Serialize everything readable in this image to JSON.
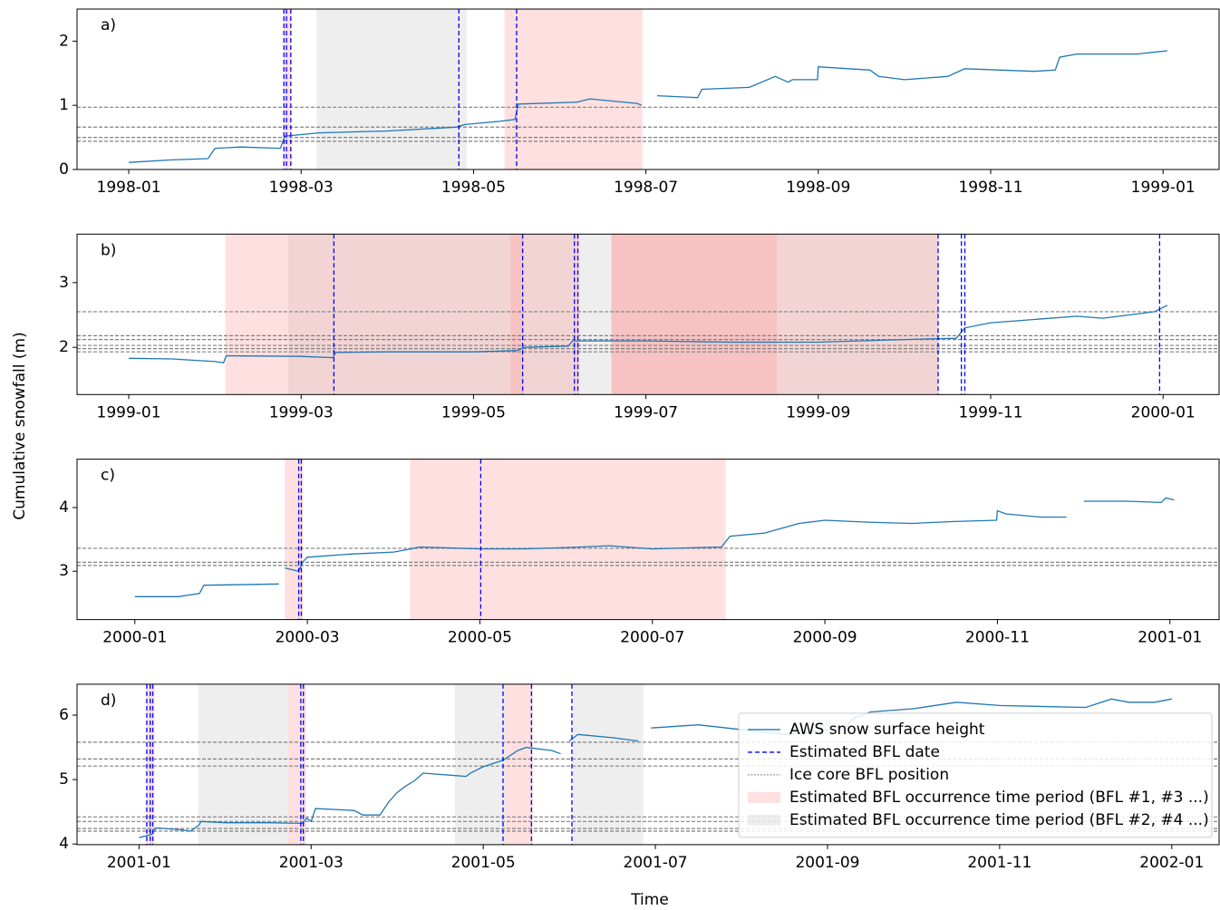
{
  "ylabel": "Cumulative snowfall (m)",
  "xlabel": "Time",
  "chart_data": [
    {
      "type": "line",
      "label": "a)",
      "x": [
        0,
        0.5,
        0.92,
        1.0,
        1.3,
        1.76,
        1.81,
        2.2,
        3.0,
        3.8,
        3.9,
        4.3,
        4.48,
        4.52,
        5.2,
        5.35,
        5.9,
        5.95,
        6.05,
        6.13,
        6.6,
        6.65,
        7.2,
        7.5,
        7.65,
        7.7,
        7.99,
        8.0,
        8.6,
        8.7,
        9.0,
        9.5,
        9.7,
        10.5,
        10.75,
        10.8,
        11.0,
        11.7,
        12.05
      ],
      "series": [
        {
          "color": "#1f77b4",
          "values": [
            0.11,
            0.15,
            0.17,
            0.33,
            0.35,
            0.33,
            0.52,
            0.57,
            0.6,
            0.66,
            0.7,
            0.75,
            0.78,
            1.02,
            1.05,
            1.1,
            1.03,
            1.0,
            null,
            1.15,
            1.12,
            1.25,
            1.28,
            1.45,
            1.36,
            1.4,
            1.4,
            1.6,
            1.55,
            1.45,
            1.4,
            1.45,
            1.57,
            1.53,
            1.55,
            1.75,
            1.8,
            1.8,
            1.85
          ]
        }
      ],
      "bfl_dates": {
        "color": "#0000ff",
        "values": [
          1.8,
          1.83,
          1.88,
          3.83,
          4.5
        ]
      },
      "ice_core_bfl": {
        "color": "#808080",
        "values": [
          0.97,
          0.66,
          0.5,
          0.44
        ]
      },
      "periods_odd": {
        "color": "#ff9999",
        "alpha": 0.3,
        "ranges": [
          [
            1.8,
            1.88
          ],
          [
            4.36,
            5.96
          ]
        ]
      },
      "periods_even": {
        "color": "#bbbbbb",
        "alpha": 0.25,
        "ranges": [
          [
            2.18,
            3.92
          ]
        ]
      },
      "xlim": [
        -0.6,
        12.65
      ],
      "ylim": [
        0,
        2.5
      ],
      "xticks": [
        {
          "value": 0,
          "label": "1998-01"
        },
        {
          "value": 2,
          "label": "1998-03"
        },
        {
          "value": 4,
          "label": "1998-05"
        },
        {
          "value": 6,
          "label": "1998-07"
        },
        {
          "value": 8,
          "label": "1998-09"
        },
        {
          "value": 10,
          "label": "1998-11"
        },
        {
          "value": 12,
          "label": "1999-01"
        }
      ],
      "yticks": [
        0,
        1,
        2
      ]
    },
    {
      "type": "line",
      "label": "b)",
      "x": [
        0,
        0.5,
        1.0,
        1.1,
        1.13,
        2.0,
        2.37,
        2.4,
        3.0,
        4.0,
        4.5,
        4.6,
        5.1,
        5.15,
        5.5,
        6.0,
        7.0,
        8.0,
        9.0,
        9.6,
        9.7,
        10.0,
        11.0,
        11.3,
        11.9,
        12.05
      ],
      "series": [
        {
          "color": "#1f77b4",
          "values": [
            1.83,
            1.82,
            1.78,
            1.76,
            1.87,
            1.86,
            1.84,
            1.92,
            1.93,
            1.93,
            1.95,
            2.0,
            2.02,
            2.1,
            2.1,
            2.1,
            2.08,
            2.08,
            2.12,
            2.14,
            2.3,
            2.38,
            2.48,
            2.45,
            2.55,
            2.65
          ]
        }
      ],
      "bfl_dates": {
        "color": "#0000ff",
        "values": [
          2.38,
          4.57,
          5.17,
          5.21,
          9.39,
          9.66,
          9.7,
          11.96
        ]
      },
      "ice_core_bfl": {
        "color": "#808080",
        "values": [
          2.55,
          2.18,
          2.12,
          2.03,
          1.98,
          1.93
        ]
      },
      "periods_odd": {
        "color": "#ff9999",
        "alpha": 0.3,
        "ranges": [
          [
            1.12,
            4.57
          ],
          [
            4.43,
            5.23
          ],
          [
            5.6,
            9.39
          ],
          [
            5.6,
            7.52
          ]
        ]
      },
      "periods_even": {
        "color": "#bbbbbb",
        "alpha": 0.25,
        "ranges": [
          [
            1.85,
            9.39
          ]
        ]
      },
      "xlim": [
        -0.6,
        12.65
      ],
      "ylim": [
        1.27,
        3.75
      ],
      "xticks": [
        {
          "value": 0,
          "label": "1999-01"
        },
        {
          "value": 2,
          "label": "1999-03"
        },
        {
          "value": 4,
          "label": "1999-05"
        },
        {
          "value": 6,
          "label": "1999-07"
        },
        {
          "value": 8,
          "label": "1999-09"
        },
        {
          "value": 10,
          "label": "1999-11"
        },
        {
          "value": 12,
          "label": "2000-01"
        }
      ],
      "yticks": [
        2,
        3
      ]
    },
    {
      "type": "line",
      "label": "c)",
      "x": [
        0,
        0.5,
        0.75,
        0.8,
        1.67,
        1.7,
        1.74,
        1.9,
        1.95,
        2.0,
        2.5,
        3.0,
        3.2,
        3.3,
        4.0,
        4.5,
        5.0,
        5.5,
        6.0,
        6.8,
        6.9,
        7.3,
        7.7,
        8.0,
        8.5,
        9.0,
        9.5,
        9.99,
        10.0,
        10.1,
        10.5,
        10.8,
        10.85,
        11.0,
        11.5,
        11.9,
        11.95,
        12.05
      ],
      "series": [
        {
          "color": "#1f77b4",
          "values": [
            2.6,
            2.6,
            2.65,
            2.78,
            2.8,
            null,
            3.05,
            3.0,
            3.15,
            3.22,
            3.27,
            3.3,
            3.35,
            3.38,
            3.35,
            3.35,
            3.37,
            3.4,
            3.35,
            3.38,
            3.55,
            3.6,
            3.75,
            3.8,
            3.77,
            3.75,
            3.78,
            3.8,
            3.95,
            3.9,
            3.85,
            3.85,
            null,
            4.1,
            4.1,
            4.08,
            4.15,
            4.12
          ]
        }
      ],
      "bfl_dates": {
        "color": "#0000ff",
        "values": [
          1.9,
          1.93,
          4.01
        ]
      },
      "ice_core_bfl": {
        "color": "#808080",
        "values": [
          3.36,
          3.14,
          3.09
        ]
      },
      "periods_odd": {
        "color": "#ff9999",
        "alpha": 0.3,
        "ranges": [
          [
            1.74,
            1.95
          ],
          [
            3.19,
            6.85
          ]
        ]
      },
      "xlim": [
        -0.67,
        12.57
      ],
      "ylim": [
        2.24,
        4.76
      ],
      "xticks": [
        {
          "value": 0,
          "label": "2000-01"
        },
        {
          "value": 2,
          "label": "2000-03"
        },
        {
          "value": 4,
          "label": "2000-05"
        },
        {
          "value": 6,
          "label": "2000-07"
        },
        {
          "value": 8,
          "label": "2000-09"
        },
        {
          "value": 10,
          "label": "2000-11"
        },
        {
          "value": 12,
          "label": "2001-01"
        }
      ],
      "yticks": [
        3,
        4
      ]
    },
    {
      "type": "line",
      "label": "d)",
      "x": [
        0,
        0.15,
        0.2,
        0.5,
        0.6,
        0.7,
        0.72,
        1.0,
        1.5,
        1.9,
        1.95,
        2.0,
        2.05,
        2.5,
        2.6,
        2.8,
        2.9,
        3.0,
        3.1,
        3.2,
        3.3,
        3.8,
        3.85,
        4.0,
        4.23,
        4.4,
        4.5,
        4.8,
        4.9,
        4.95,
        5.0,
        5.1,
        5.5,
        5.8,
        5.88,
        5.95,
        6.5,
        7.5,
        8.2,
        8.3,
        8.5,
        9.0,
        9.5,
        10.0,
        11.0,
        11.3,
        11.5,
        11.8,
        12.0
      ],
      "series": [
        {
          "name": "AWS snow surface height",
          "color": "#1f77b4",
          "values": [
            4.1,
            4.15,
            4.25,
            4.22,
            4.2,
            4.3,
            4.35,
            4.33,
            4.33,
            4.32,
            4.4,
            4.35,
            4.55,
            4.52,
            4.45,
            4.45,
            4.65,
            4.8,
            4.9,
            4.98,
            5.1,
            5.05,
            5.1,
            5.2,
            5.3,
            5.45,
            5.5,
            5.45,
            5.4,
            null,
            5.6,
            5.7,
            5.65,
            5.6,
            null,
            5.8,
            5.85,
            5.7,
            5.8,
            5.95,
            6.05,
            6.1,
            6.2,
            6.15,
            6.12,
            6.25,
            6.2,
            6.2,
            6.25
          ]
        }
      ],
      "bfl_dates": {
        "name": "Estimated BFL date",
        "color": "#0000ff",
        "values": [
          0.09,
          0.13,
          0.16,
          1.88,
          1.91,
          4.23,
          4.56,
          5.03
        ]
      },
      "ice_core_bfl": {
        "name": "Ice core BFL position",
        "color": "#808080",
        "values": [
          5.58,
          5.32,
          5.21,
          4.42,
          4.35,
          4.24,
          4.2
        ]
      },
      "periods_odd": {
        "name": "Estimated BFL occurrence time period (BFL #1, #3 ...)",
        "color": "#ff9999",
        "alpha": 0.3,
        "ranges": [
          [
            0.09,
            0.18
          ],
          [
            1.73,
            1.94
          ],
          [
            4.25,
            4.58
          ]
        ]
      },
      "periods_even": {
        "name": "Estimated BFL occurrence time period (BFL #2, #4 ...)",
        "color": "#bbbbbb",
        "alpha": 0.25,
        "ranges": [
          [
            0.69,
            1.73
          ],
          [
            3.67,
            4.25
          ],
          [
            5.04,
            5.86
          ]
        ]
      },
      "xlim": [
        -0.72,
        12.55
      ],
      "ylim": [
        3.99,
        6.48
      ],
      "xticks": [
        {
          "value": 0,
          "label": "2001-01"
        },
        {
          "value": 2,
          "label": "2001-03"
        },
        {
          "value": 4,
          "label": "2001-05"
        },
        {
          "value": 6,
          "label": "2001-07"
        },
        {
          "value": 8,
          "label": "2001-09"
        },
        {
          "value": 10,
          "label": "2001-11"
        },
        {
          "value": 12,
          "label": "2002-01"
        }
      ],
      "yticks": [
        4,
        5,
        6
      ],
      "legend": "lower right"
    }
  ]
}
